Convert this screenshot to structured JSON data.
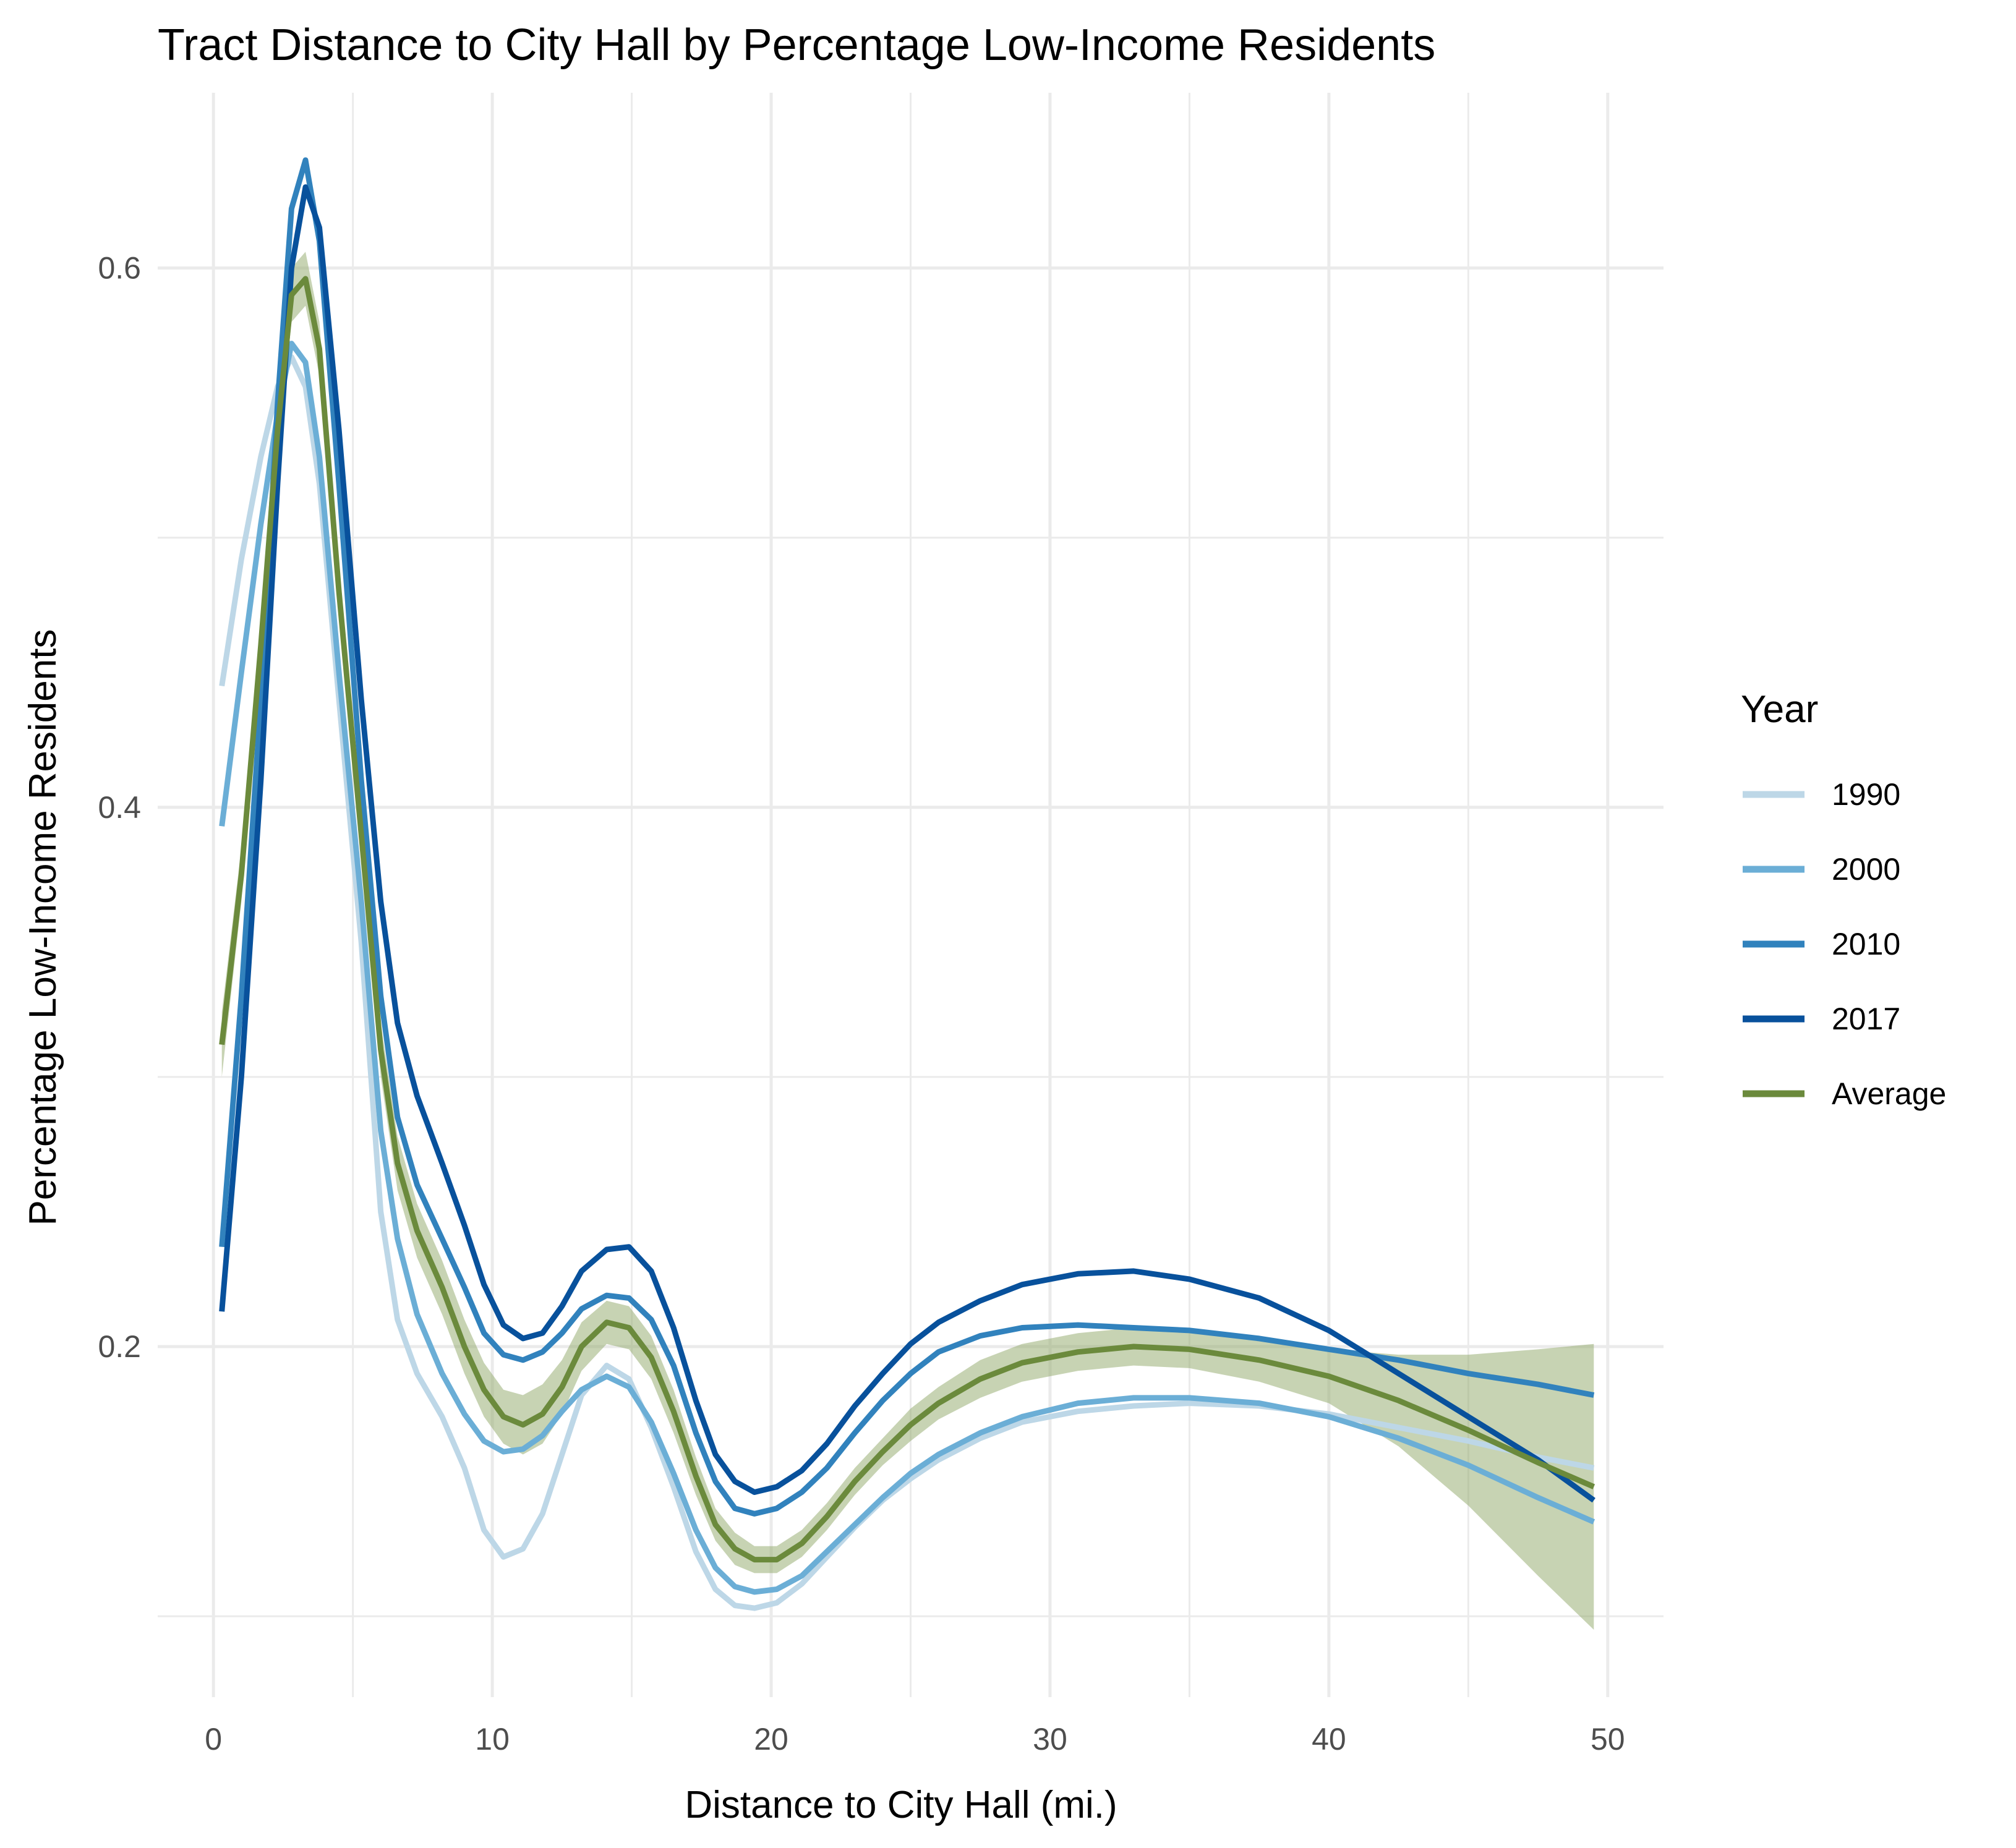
{
  "chart_data": {
    "type": "line",
    "title": "Tract Distance to City Hall by Percentage Low-Income Residents",
    "xlabel": "Distance to City Hall (mi.)",
    "ylabel": "Percentage Low-Income Residents",
    "xlim": [
      -2,
      52
    ],
    "ylim": [
      0.07,
      0.665
    ],
    "x_ticks": [
      0,
      10,
      20,
      30,
      40,
      50
    ],
    "x_tick_labels": [
      "0",
      "10",
      "20",
      "30",
      "40",
      "50"
    ],
    "y_ticks": [
      0.2,
      0.4,
      0.6
    ],
    "y_tick_labels": [
      "0.2",
      "0.4",
      "0.6"
    ],
    "grid": true,
    "legend": {
      "title": "Year",
      "position": "right"
    },
    "series": [
      {
        "name": "1990",
        "color": "#bdd7e7",
        "points": [
          [
            0.3,
            0.445
          ],
          [
            1.0,
            0.492
          ],
          [
            1.7,
            0.53
          ],
          [
            2.3,
            0.556
          ],
          [
            2.8,
            0.567
          ],
          [
            3.3,
            0.556
          ],
          [
            3.8,
            0.52
          ],
          [
            4.5,
            0.44
          ],
          [
            5.3,
            0.35
          ],
          [
            6.0,
            0.25
          ],
          [
            6.6,
            0.21
          ],
          [
            7.3,
            0.19
          ],
          [
            8.2,
            0.174
          ],
          [
            9.0,
            0.155
          ],
          [
            9.7,
            0.132
          ],
          [
            10.4,
            0.122
          ],
          [
            11.1,
            0.125
          ],
          [
            11.8,
            0.138
          ],
          [
            12.5,
            0.16
          ],
          [
            13.2,
            0.182
          ],
          [
            14.1,
            0.193
          ],
          [
            14.9,
            0.188
          ],
          [
            15.7,
            0.17
          ],
          [
            16.5,
            0.148
          ],
          [
            17.3,
            0.124
          ],
          [
            18.0,
            0.11
          ],
          [
            18.7,
            0.104
          ],
          [
            19.4,
            0.103
          ],
          [
            20.2,
            0.105
          ],
          [
            21.1,
            0.112
          ],
          [
            22.0,
            0.122
          ],
          [
            23.0,
            0.133
          ],
          [
            24.0,
            0.143
          ],
          [
            25.0,
            0.151
          ],
          [
            26.0,
            0.158
          ],
          [
            27.5,
            0.166
          ],
          [
            29.0,
            0.172
          ],
          [
            31.0,
            0.176
          ],
          [
            33.0,
            0.178
          ],
          [
            35.0,
            0.179
          ],
          [
            37.5,
            0.178
          ],
          [
            40.0,
            0.175
          ],
          [
            42.5,
            0.17
          ],
          [
            45.0,
            0.165
          ],
          [
            47.5,
            0.159
          ],
          [
            49.5,
            0.155
          ]
        ]
      },
      {
        "name": "2000",
        "color": "#6baed6",
        "points": [
          [
            0.3,
            0.393
          ],
          [
            1.0,
            0.45
          ],
          [
            1.7,
            0.505
          ],
          [
            2.3,
            0.546
          ],
          [
            2.8,
            0.572
          ],
          [
            3.3,
            0.565
          ],
          [
            3.8,
            0.53
          ],
          [
            4.5,
            0.45
          ],
          [
            5.3,
            0.365
          ],
          [
            6.0,
            0.28
          ],
          [
            6.6,
            0.24
          ],
          [
            7.3,
            0.212
          ],
          [
            8.2,
            0.19
          ],
          [
            9.0,
            0.175
          ],
          [
            9.7,
            0.165
          ],
          [
            10.4,
            0.161
          ],
          [
            11.1,
            0.162
          ],
          [
            11.8,
            0.167
          ],
          [
            12.5,
            0.176
          ],
          [
            13.2,
            0.184
          ],
          [
            14.1,
            0.189
          ],
          [
            14.9,
            0.185
          ],
          [
            15.7,
            0.172
          ],
          [
            16.5,
            0.153
          ],
          [
            17.3,
            0.132
          ],
          [
            18.0,
            0.118
          ],
          [
            18.7,
            0.111
          ],
          [
            19.4,
            0.109
          ],
          [
            20.2,
            0.11
          ],
          [
            21.1,
            0.115
          ],
          [
            22.0,
            0.124
          ],
          [
            23.0,
            0.134
          ],
          [
            24.0,
            0.144
          ],
          [
            25.0,
            0.153
          ],
          [
            26.0,
            0.16
          ],
          [
            27.5,
            0.168
          ],
          [
            29.0,
            0.174
          ],
          [
            31.0,
            0.179
          ],
          [
            33.0,
            0.181
          ],
          [
            35.0,
            0.181
          ],
          [
            37.5,
            0.179
          ],
          [
            40.0,
            0.174
          ],
          [
            42.5,
            0.166
          ],
          [
            45.0,
            0.156
          ],
          [
            47.5,
            0.144
          ],
          [
            49.5,
            0.135
          ]
        ]
      },
      {
        "name": "2010",
        "color": "#3182bd",
        "points": [
          [
            0.3,
            0.237
          ],
          [
            1.0,
            0.33
          ],
          [
            1.7,
            0.44
          ],
          [
            2.3,
            0.55
          ],
          [
            2.8,
            0.622
          ],
          [
            3.3,
            0.64
          ],
          [
            3.8,
            0.61
          ],
          [
            4.5,
            0.52
          ],
          [
            5.3,
            0.41
          ],
          [
            6.0,
            0.33
          ],
          [
            6.6,
            0.285
          ],
          [
            7.3,
            0.26
          ],
          [
            8.2,
            0.24
          ],
          [
            9.0,
            0.222
          ],
          [
            9.7,
            0.205
          ],
          [
            10.4,
            0.197
          ],
          [
            11.1,
            0.195
          ],
          [
            11.8,
            0.198
          ],
          [
            12.5,
            0.205
          ],
          [
            13.2,
            0.214
          ],
          [
            14.1,
            0.219
          ],
          [
            14.9,
            0.218
          ],
          [
            15.7,
            0.21
          ],
          [
            16.5,
            0.193
          ],
          [
            17.3,
            0.168
          ],
          [
            18.0,
            0.15
          ],
          [
            18.7,
            0.14
          ],
          [
            19.4,
            0.138
          ],
          [
            20.2,
            0.14
          ],
          [
            21.1,
            0.146
          ],
          [
            22.0,
            0.155
          ],
          [
            23.0,
            0.168
          ],
          [
            24.0,
            0.18
          ],
          [
            25.0,
            0.19
          ],
          [
            26.0,
            0.198
          ],
          [
            27.5,
            0.204
          ],
          [
            29.0,
            0.207
          ],
          [
            31.0,
            0.208
          ],
          [
            33.0,
            0.207
          ],
          [
            35.0,
            0.206
          ],
          [
            37.5,
            0.203
          ],
          [
            40.0,
            0.199
          ],
          [
            42.5,
            0.195
          ],
          [
            45.0,
            0.19
          ],
          [
            47.5,
            0.186
          ],
          [
            49.5,
            0.182
          ]
        ]
      },
      {
        "name": "2017",
        "color": "#08519c",
        "points": [
          [
            0.3,
            0.213
          ],
          [
            1.0,
            0.3
          ],
          [
            1.7,
            0.41
          ],
          [
            2.3,
            0.52
          ],
          [
            2.8,
            0.6
          ],
          [
            3.3,
            0.63
          ],
          [
            3.8,
            0.615
          ],
          [
            4.5,
            0.54
          ],
          [
            5.3,
            0.44
          ],
          [
            6.0,
            0.365
          ],
          [
            6.6,
            0.32
          ],
          [
            7.3,
            0.293
          ],
          [
            8.2,
            0.268
          ],
          [
            9.0,
            0.245
          ],
          [
            9.7,
            0.223
          ],
          [
            10.4,
            0.208
          ],
          [
            11.1,
            0.203
          ],
          [
            11.8,
            0.205
          ],
          [
            12.5,
            0.215
          ],
          [
            13.2,
            0.228
          ],
          [
            14.1,
            0.236
          ],
          [
            14.9,
            0.237
          ],
          [
            15.7,
            0.228
          ],
          [
            16.5,
            0.207
          ],
          [
            17.3,
            0.18
          ],
          [
            18.0,
            0.16
          ],
          [
            18.7,
            0.15
          ],
          [
            19.4,
            0.146
          ],
          [
            20.2,
            0.148
          ],
          [
            21.1,
            0.154
          ],
          [
            22.0,
            0.164
          ],
          [
            23.0,
            0.178
          ],
          [
            24.0,
            0.19
          ],
          [
            25.0,
            0.201
          ],
          [
            26.0,
            0.209
          ],
          [
            27.5,
            0.217
          ],
          [
            29.0,
            0.223
          ],
          [
            31.0,
            0.227
          ],
          [
            33.0,
            0.228
          ],
          [
            35.0,
            0.225
          ],
          [
            37.5,
            0.218
          ],
          [
            40.0,
            0.206
          ],
          [
            42.5,
            0.19
          ],
          [
            45.0,
            0.174
          ],
          [
            47.5,
            0.158
          ],
          [
            49.5,
            0.143
          ]
        ]
      },
      {
        "name": "Average",
        "color": "#6b8a3c",
        "points": [
          [
            0.3,
            0.312
          ],
          [
            1.0,
            0.375
          ],
          [
            1.7,
            0.46
          ],
          [
            2.3,
            0.54
          ],
          [
            2.8,
            0.59
          ],
          [
            3.3,
            0.596
          ],
          [
            3.8,
            0.57
          ],
          [
            4.5,
            0.48
          ],
          [
            5.3,
            0.39
          ],
          [
            6.0,
            0.31
          ],
          [
            6.6,
            0.268
          ],
          [
            7.3,
            0.243
          ],
          [
            8.2,
            0.222
          ],
          [
            9.0,
            0.2
          ],
          [
            9.7,
            0.184
          ],
          [
            10.4,
            0.174
          ],
          [
            11.1,
            0.171
          ],
          [
            11.8,
            0.175
          ],
          [
            12.5,
            0.185
          ],
          [
            13.2,
            0.2
          ],
          [
            14.1,
            0.209
          ],
          [
            14.9,
            0.207
          ],
          [
            15.7,
            0.196
          ],
          [
            16.5,
            0.176
          ],
          [
            17.3,
            0.152
          ],
          [
            18.0,
            0.134
          ],
          [
            18.7,
            0.125
          ],
          [
            19.4,
            0.121
          ],
          [
            20.2,
            0.121
          ],
          [
            21.1,
            0.127
          ],
          [
            22.0,
            0.137
          ],
          [
            23.0,
            0.15
          ],
          [
            24.0,
            0.161
          ],
          [
            25.0,
            0.171
          ],
          [
            26.0,
            0.179
          ],
          [
            27.5,
            0.188
          ],
          [
            29.0,
            0.194
          ],
          [
            31.0,
            0.198
          ],
          [
            33.0,
            0.2
          ],
          [
            35.0,
            0.199
          ],
          [
            37.5,
            0.195
          ],
          [
            40.0,
            0.189
          ],
          [
            42.5,
            0.18
          ],
          [
            45.0,
            0.169
          ],
          [
            47.5,
            0.157
          ],
          [
            49.5,
            0.148
          ]
        ],
        "band_lower": [
          0.3,
          0.365,
          0.45,
          0.53,
          0.58,
          0.586,
          0.56,
          0.47,
          0.38,
          0.3,
          0.258,
          0.233,
          0.212,
          0.19,
          0.174,
          0.164,
          0.16,
          0.164,
          0.175,
          0.191,
          0.201,
          0.199,
          0.188,
          0.168,
          0.145,
          0.128,
          0.119,
          0.116,
          0.116,
          0.122,
          0.132,
          0.145,
          0.156,
          0.165,
          0.173,
          0.181,
          0.187,
          0.191,
          0.193,
          0.192,
          0.187,
          0.179,
          0.163,
          0.141,
          0.115,
          0.095
        ],
        "band_upper": [
          0.324,
          0.385,
          0.47,
          0.55,
          0.6,
          0.606,
          0.58,
          0.49,
          0.4,
          0.32,
          0.278,
          0.253,
          0.232,
          0.21,
          0.194,
          0.184,
          0.182,
          0.186,
          0.195,
          0.209,
          0.217,
          0.215,
          0.204,
          0.184,
          0.159,
          0.14,
          0.131,
          0.126,
          0.126,
          0.132,
          0.142,
          0.155,
          0.166,
          0.177,
          0.185,
          0.195,
          0.201,
          0.205,
          0.207,
          0.206,
          0.203,
          0.199,
          0.197,
          0.197,
          0.199,
          0.201
        ],
        "band_color": "#8fa867"
      }
    ]
  }
}
